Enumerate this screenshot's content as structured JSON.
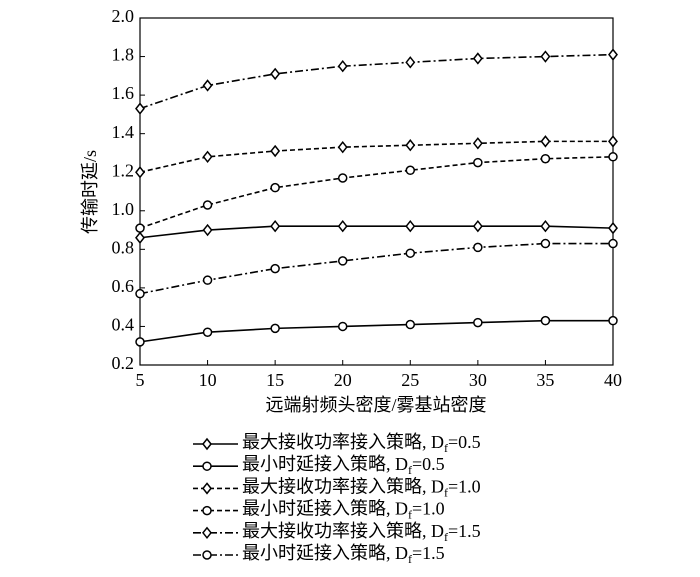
{
  "chart_data": {
    "type": "line",
    "xlabel": "远端射频头密度/雾基站密度",
    "ylabel": "传输时延/s",
    "x": [
      5,
      10,
      15,
      20,
      25,
      30,
      35,
      40
    ],
    "xlim": [
      5,
      40
    ],
    "xticks": [
      5,
      10,
      15,
      20,
      25,
      30,
      35,
      40
    ],
    "ylim": [
      0.2,
      2.0
    ],
    "yticks": [
      0.2,
      0.4,
      0.6,
      0.8,
      {
        "value": 1.0,
        "label": "1.0"
      },
      1.2,
      1.4,
      1.6,
      1.8,
      {
        "value": 2.0,
        "label": "2.0"
      }
    ],
    "series": [
      {
        "name": "最大接收功率接入策略, Df=0.5",
        "color": "#000000",
        "marker": "diamond",
        "linestyle": "solid",
        "values": [
          0.86,
          0.9,
          0.92,
          0.92,
          0.92,
          0.92,
          0.92,
          0.91
        ]
      },
      {
        "name": "最小时延接入策略, Df=0.5",
        "color": "#000000",
        "marker": "circle",
        "linestyle": "solid",
        "values": [
          0.32,
          0.37,
          0.39,
          0.4,
          0.41,
          0.42,
          0.43,
          0.43
        ]
      },
      {
        "name": "最大接收功率接入策略, Df=1.0",
        "color": "#000000",
        "marker": "diamond",
        "linestyle": "dashed",
        "values": [
          1.2,
          1.28,
          1.31,
          1.33,
          1.34,
          1.35,
          1.36,
          1.36
        ]
      },
      {
        "name": "最小时延接入策略, Df=1.0",
        "color": "#000000",
        "marker": "circle",
        "linestyle": "dashed",
        "values": [
          0.91,
          1.03,
          1.12,
          1.17,
          1.21,
          1.25,
          1.27,
          1.28
        ]
      },
      {
        "name": "最大接收功率接入策略, Df=1.5",
        "color": "#000000",
        "marker": "diamond",
        "linestyle": "dashdot",
        "values": [
          1.53,
          1.65,
          1.71,
          1.75,
          1.77,
          1.79,
          1.8,
          1.81
        ]
      },
      {
        "name": "最小时延接入策略, Df=1.5",
        "color": "#000000",
        "marker": "circle",
        "linestyle": "dashdot",
        "values": [
          0.57,
          0.64,
          0.7,
          0.74,
          0.78,
          0.81,
          0.83,
          0.83
        ]
      }
    ]
  }
}
